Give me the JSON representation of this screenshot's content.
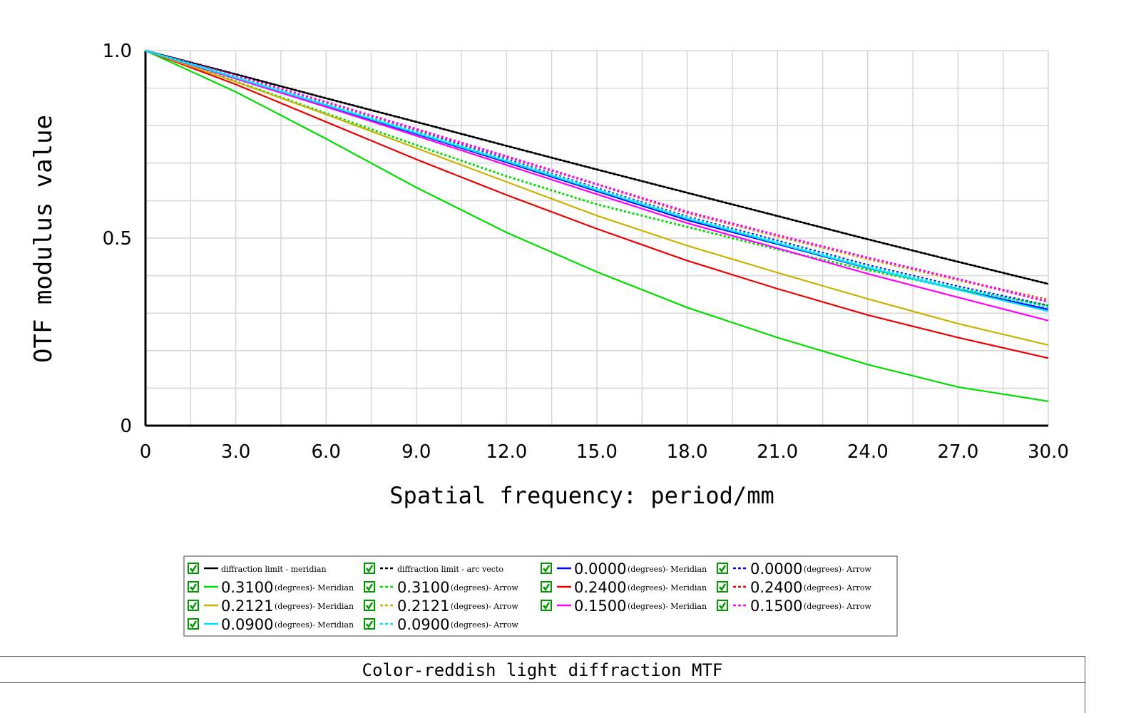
{
  "chart_data": {
    "type": "line",
    "xlabel": "Spatial frequency: period/mm",
    "ylabel": "OTF modulus value",
    "xlim": [
      0,
      30
    ],
    "ylim": [
      0,
      1
    ],
    "x_ticks": [
      "0",
      "3.0",
      "6.0",
      "9.0",
      "12.0",
      "15.0",
      "18.0",
      "21.0",
      "24.0",
      "27.0",
      "30.0"
    ],
    "y_ticks": [
      "0",
      "0.5",
      "1.0"
    ],
    "grid": true,
    "legend_placement": "bottom",
    "x": [
      0,
      3,
      6,
      9,
      12,
      15,
      18,
      21,
      24,
      27,
      30
    ],
    "series": [
      {
        "name": "diffraction limit - meridian",
        "color": "#000000",
        "dash": "solid",
        "values": [
          1.0,
          0.937,
          0.873,
          0.81,
          0.746,
          0.683,
          0.621,
          0.559,
          0.497,
          0.437,
          0.378
        ]
      },
      {
        "name": "diffraction limit - arc vector",
        "color": "#000000",
        "dash": "dotted",
        "values": [
          1.0,
          0.937,
          0.873,
          0.81,
          0.746,
          0.683,
          0.621,
          0.559,
          0.497,
          0.437,
          0.378
        ]
      },
      {
        "name": "0.0000(degrees)- Meridian",
        "color": "#0000ff",
        "dash": "solid",
        "values": [
          1.0,
          0.927,
          0.853,
          0.778,
          0.702,
          0.625,
          0.548,
          0.484,
          0.42,
          0.363,
          0.31
        ]
      },
      {
        "name": "0.0000 (degrees)- Arrow",
        "color": "#0000ff",
        "dash": "dotted",
        "values": [
          1.0,
          0.93,
          0.858,
          0.785,
          0.71,
          0.633,
          0.557,
          0.493,
          0.428,
          0.371,
          0.32
        ]
      },
      {
        "name": "0.3100(degrees)- Meridian",
        "color": "#00dd00",
        "dash": "solid",
        "values": [
          1.0,
          0.89,
          0.765,
          0.635,
          0.515,
          0.41,
          0.315,
          0.235,
          0.163,
          0.103,
          0.065
        ]
      },
      {
        "name": "0.3100 (degrees)- Arrow",
        "color": "#00dd00",
        "dash": "dotted",
        "values": [
          1.0,
          0.918,
          0.833,
          0.748,
          0.665,
          0.59,
          0.53,
          0.47,
          0.415,
          0.365,
          0.32
        ]
      },
      {
        "name": "0.2400(degrees)- Meridian",
        "color": "#ee0000",
        "dash": "solid",
        "values": [
          1.0,
          0.91,
          0.81,
          0.71,
          0.615,
          0.525,
          0.44,
          0.365,
          0.295,
          0.235,
          0.18
        ]
      },
      {
        "name": "0.2400 (degrees)- Arrow",
        "color": "#ee0000",
        "dash": "dotted",
        "values": [
          1.0,
          0.932,
          0.862,
          0.79,
          0.717,
          0.643,
          0.567,
          0.505,
          0.445,
          0.389,
          0.335
        ]
      },
      {
        "name": "0.2121(degrees)- Meridian",
        "color": "#c8b400",
        "dash": "solid",
        "values": [
          1.0,
          0.917,
          0.83,
          0.74,
          0.65,
          0.56,
          0.48,
          0.408,
          0.338,
          0.272,
          0.215
        ]
      },
      {
        "name": "0.2121 (degrees)- Arrow",
        "color": "#c8b400",
        "dash": "dotted",
        "values": [
          1.0,
          0.932,
          0.862,
          0.79,
          0.718,
          0.643,
          0.568,
          0.505,
          0.444,
          0.388,
          0.333
        ]
      },
      {
        "name": "0.1500(degrees)- Meridian",
        "color": "#ff00ff",
        "dash": "solid",
        "values": [
          1.0,
          0.925,
          0.85,
          0.773,
          0.695,
          0.617,
          0.54,
          0.473,
          0.405,
          0.342,
          0.28
        ]
      },
      {
        "name": "0.1500 (degrees)- Arrow",
        "color": "#ff00ff",
        "dash": "dotted",
        "values": [
          1.0,
          0.933,
          0.863,
          0.791,
          0.718,
          0.644,
          0.57,
          0.508,
          0.448,
          0.391,
          0.33
        ]
      },
      {
        "name": "0.0900(degrees)- Meridian",
        "color": "#00e5ff",
        "dash": "solid",
        "values": [
          1.0,
          0.928,
          0.855,
          0.78,
          0.705,
          0.628,
          0.552,
          0.486,
          0.421,
          0.362,
          0.305
        ]
      },
      {
        "name": "0.0900 (degrees)- Arrow",
        "color": "#00e5ff",
        "dash": "dotted",
        "values": [
          1.0,
          0.929,
          0.857,
          0.783,
          0.708,
          0.631,
          0.555,
          0.49,
          0.425,
          0.368,
          0.315
        ]
      }
    ],
    "legend": [
      {
        "main": "",
        "small": "diffraction limit - meridian",
        "color": "#000000",
        "dash": "solid"
      },
      {
        "main": "",
        "small": "diffraction limit - arc vecto",
        "color": "#000000",
        "dash": "dotted"
      },
      {
        "main": "0.0000",
        "small": "(degrees)- Meridian",
        "color": "#0000ff",
        "dash": "solid"
      },
      {
        "main": "0.0000",
        "small": "(degrees)- Arrow",
        "color": "#0000ff",
        "dash": "dotted"
      },
      {
        "main": "0.3100",
        "small": "(degrees)- Meridian",
        "color": "#00dd00",
        "dash": "solid"
      },
      {
        "main": "0.3100",
        "small": "(degrees)- Arrow",
        "color": "#00dd00",
        "dash": "dotted"
      },
      {
        "main": "0.2400",
        "small": "(degrees)- Meridian",
        "color": "#ee0000",
        "dash": "solid"
      },
      {
        "main": "0.2400",
        "small": "(degrees)- Arrow",
        "color": "#ee0000",
        "dash": "dotted"
      },
      {
        "main": "0.2121",
        "small": "(degrees)- Meridian",
        "color": "#c8b400",
        "dash": "solid"
      },
      {
        "main": "0.2121",
        "small": "(degrees)- Arrow",
        "color": "#c8b400",
        "dash": "dotted"
      },
      {
        "main": "0.1500",
        "small": "(degrees)- Meridian",
        "color": "#ff00ff",
        "dash": "solid"
      },
      {
        "main": "0.1500",
        "small": "(degrees)- Arrow",
        "color": "#ff00ff",
        "dash": "dotted"
      },
      {
        "main": "0.0900",
        "small": "(degrees)- Meridian",
        "color": "#00e5ff",
        "dash": "solid"
      },
      {
        "main": "0.0900",
        "small": "(degrees)- Arrow",
        "color": "#00e5ff",
        "dash": "dotted"
      }
    ],
    "legend_checkbox_color": "#009900"
  },
  "footer": {
    "title": "Color-reddish light diffraction MTF"
  }
}
